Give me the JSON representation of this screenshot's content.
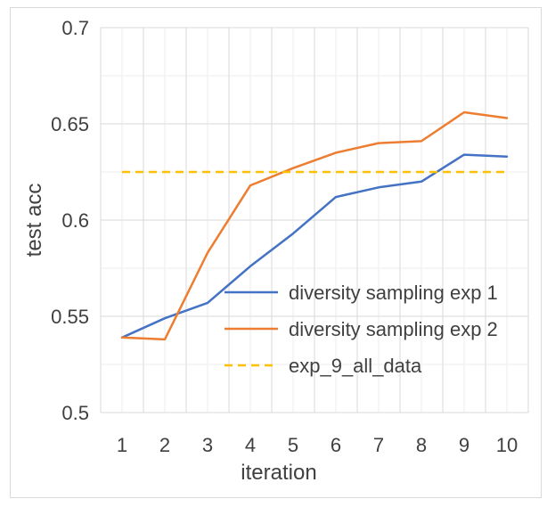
{
  "chart_data": {
    "type": "line",
    "title": "",
    "xlabel": "iteration",
    "ylabel": "test acc",
    "x": [
      1,
      2,
      3,
      4,
      5,
      6,
      7,
      8,
      9,
      10
    ],
    "x_tick_labels": [
      "1",
      "2",
      "3",
      "4",
      "5",
      "6",
      "7",
      "8",
      "9",
      "10"
    ],
    "ylim": [
      0.5,
      0.7
    ],
    "y_ticks": [
      0.5,
      0.55,
      0.6,
      0.65,
      0.7
    ],
    "y_tick_labels": [
      "0.5",
      "0.55",
      "0.6",
      "0.65",
      "0.7"
    ],
    "grid": true,
    "legend_position": "lower-right",
    "series": [
      {
        "name": "diversity sampling exp 1",
        "color": "#4472c4",
        "style": "solid",
        "values": [
          0.539,
          0.549,
          0.557,
          0.576,
          0.593,
          0.612,
          0.617,
          0.62,
          0.634,
          0.633
        ]
      },
      {
        "name": "diversity sampling exp 2",
        "color": "#ed7d31",
        "style": "solid",
        "values": [
          0.539,
          0.538,
          0.583,
          0.618,
          0.627,
          0.635,
          0.64,
          0.641,
          0.656,
          0.653
        ]
      },
      {
        "name": "exp_9_all_data",
        "color": "#ffc000",
        "style": "dashed",
        "values": [
          0.625,
          0.625,
          0.625,
          0.625,
          0.625,
          0.625,
          0.625,
          0.625,
          0.625,
          0.625
        ]
      }
    ]
  }
}
